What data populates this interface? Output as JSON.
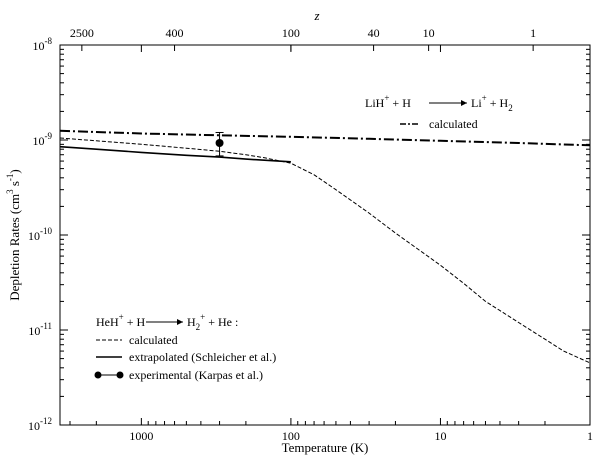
{
  "chart_data": {
    "type": "line",
    "xlabel": "Temperature (K)",
    "ylabel": "Depletion Rates (cm<sup>3</sup> s<sup>-1</sup>)",
    "ylabel_parts": {
      "main": "Depletion Rates (cm",
      "sup1": "3",
      "mid": " s",
      "sup2": "-1",
      "end": ")"
    },
    "top_axis_title": "z",
    "x_scale": "log-reversed",
    "xlim": [
      3500,
      1
    ],
    "y_scale": "log",
    "ylim": [
      1e-12,
      1e-08
    ],
    "x_ticks": [
      {
        "value": 1000,
        "label": "1000"
      },
      {
        "value": 100,
        "label": "100"
      },
      {
        "value": 10,
        "label": "10"
      },
      {
        "value": 1,
        "label": "1"
      }
    ],
    "y_ticks": [
      {
        "value": 1e-12,
        "base": "10",
        "exp": "-12"
      },
      {
        "value": 1e-11,
        "base": "10",
        "exp": "-11"
      },
      {
        "value": 1e-10,
        "base": "10",
        "exp": "-10"
      },
      {
        "value": 1e-09,
        "base": "10",
        "exp": "-9"
      },
      {
        "value": 1e-08,
        "base": "10",
        "exp": "-8"
      }
    ],
    "top_ticks": [
      {
        "label": "2500",
        "temperature": 2500
      },
      {
        "label": "400",
        "temperature": 600
      },
      {
        "label": "100",
        "temperature": 100
      },
      {
        "label": "40",
        "temperature": 28
      },
      {
        "label": "10",
        "temperature": 12
      },
      {
        "label": "1",
        "temperature": 2.4
      }
    ],
    "series": [
      {
        "key": "lih_calc",
        "style": "dash-dot",
        "x": [
          3500,
          1000,
          300,
          100,
          30,
          10,
          3,
          1
        ],
        "y": [
          1.25e-09,
          1.17e-09,
          1.12e-09,
          1.08e-09,
          1.03e-09,
          9.8e-10,
          9.3e-10,
          8.8e-10
        ]
      },
      {
        "key": "heh_calc",
        "style": "dashed",
        "x": [
          3500,
          2000,
          1000,
          500,
          300,
          200,
          150,
          100,
          70,
          50,
          30,
          20,
          10,
          7,
          5,
          4,
          3,
          2,
          1.5,
          1
        ],
        "y": [
          1.05e-09,
          9.8e-10,
          9e-10,
          8.2e-10,
          7.6e-10,
          7e-10,
          6.5e-10,
          5.7e-10,
          4.3e-10,
          3e-10,
          1.7e-10,
          1.05e-10,
          4.8e-11,
          3.1e-11,
          2e-11,
          1.6e-11,
          1.2e-11,
          8e-12,
          6e-12,
          4.5e-12
        ]
      },
      {
        "key": "heh_extrap",
        "style": "solid",
        "x": [
          3500,
          2000,
          1000,
          500,
          300,
          200,
          100
        ],
        "y": [
          8.5e-10,
          8e-10,
          7.4e-10,
          6.9e-10,
          6.6e-10,
          6.3e-10,
          5.9e-10
        ]
      }
    ],
    "experimental": {
      "x": 300,
      "y": 9.3e-10,
      "err_low": 6.8e-10,
      "err_high": 1.2e-09
    },
    "legend_lih": {
      "reaction": {
        "a": "LiH",
        "a_sup": "+",
        "b": " + H",
        "c": "Li",
        "c_sup": "+",
        "d": " + H",
        "d_sub": "2"
      },
      "calculated": "calculated"
    },
    "legend_heh": {
      "reaction": {
        "a": "HeH",
        "a_sup": "+",
        "b": " + H",
        "c": "H",
        "c_sub": "2",
        "c_sup": "+",
        "d": " + He  :"
      },
      "calculated": "calculated",
      "extrapolated": "extrapolated (Schleicher et al.)",
      "experimental": "experimental (Karpas et al.)"
    }
  }
}
